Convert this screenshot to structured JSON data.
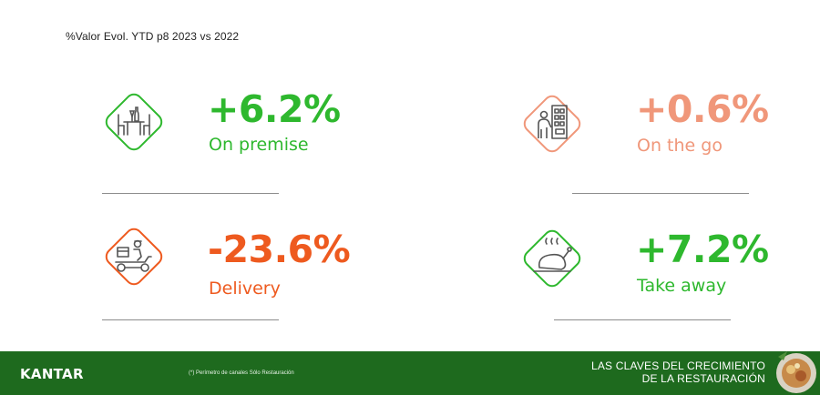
{
  "subtitle": "%Valor Evol. YTD p8 2023 vs 2022",
  "colors": {
    "green": "#2eb82e",
    "salmon": "#f0977a",
    "orange": "#ee5a1f",
    "footer": "#1e6a1e"
  },
  "metrics": [
    {
      "value": "+6.2%",
      "label": "On premise",
      "icon": "dining-table-icon",
      "color": "green"
    },
    {
      "value": "+0.6%",
      "label": "On the go",
      "icon": "vending-machine-icon",
      "color": "salmon"
    },
    {
      "value": "-23.6%",
      "label": "Delivery",
      "icon": "delivery-scooter-icon",
      "color": "orange"
    },
    {
      "value": "+7.2%",
      "label": "Take away",
      "icon": "roast-chicken-icon",
      "color": "green"
    }
  ],
  "footer": {
    "brand": "KANTAR",
    "footnote": "(*) Perímetro de canales Sólo Restauración",
    "tagline_line1": "LAS CLAVES DEL CRECIMIENTO",
    "tagline_line2": "DE LA RESTAURACIÓN"
  }
}
